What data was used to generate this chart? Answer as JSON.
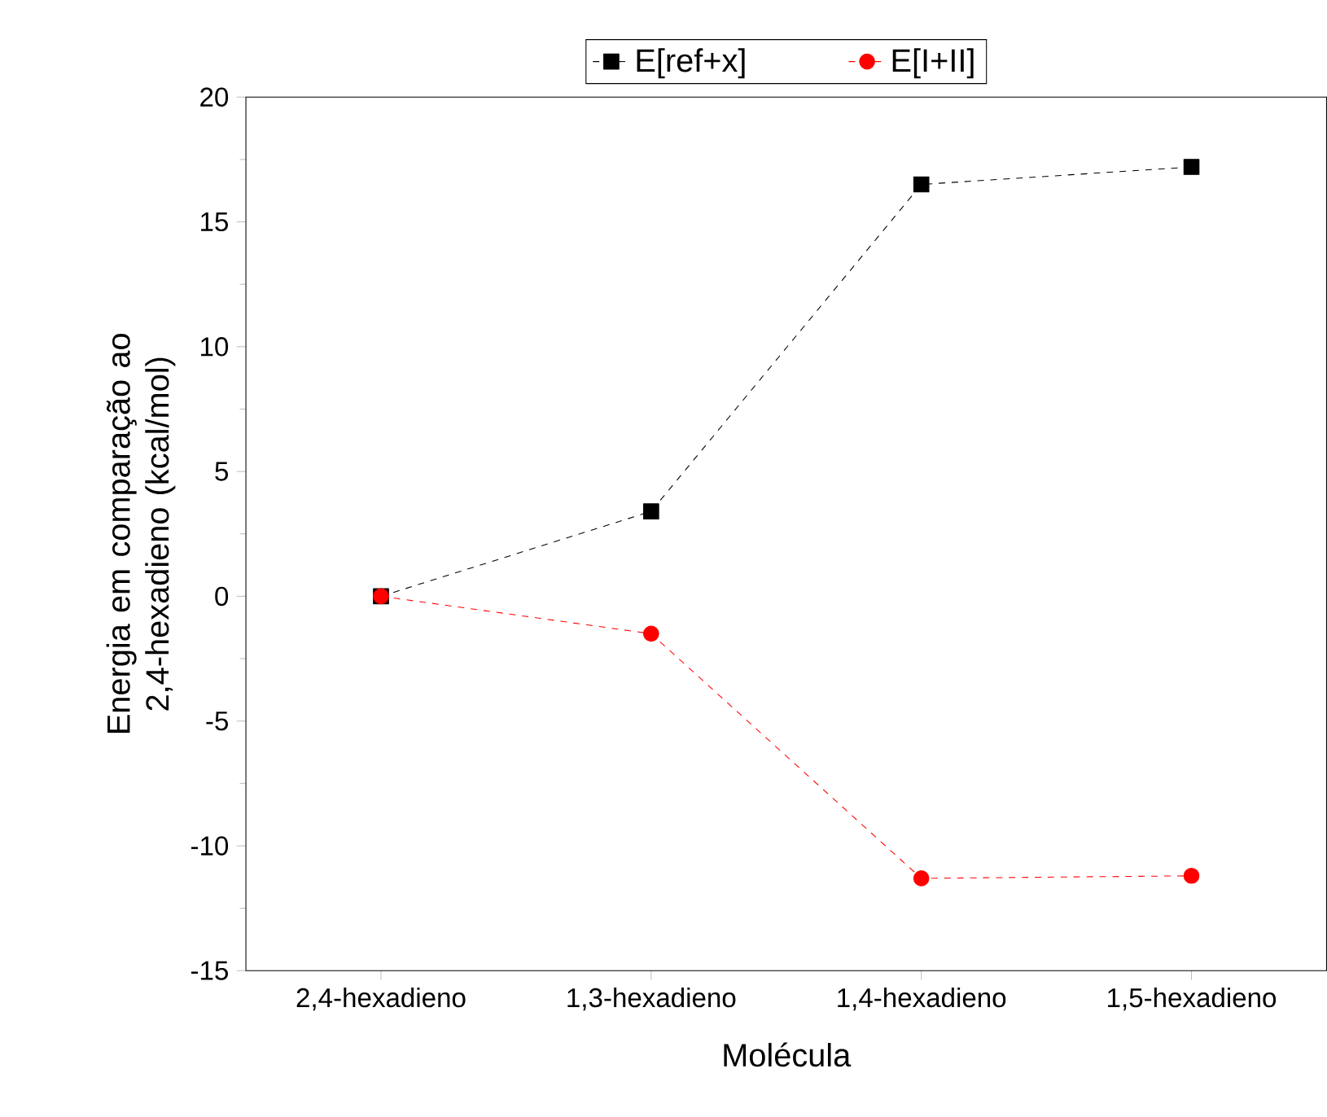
{
  "chart_data": {
    "type": "line",
    "xlabel": "Molécula",
    "ylabel": "Energia em comparação ao 2,4-hexadieno (kcal/mol)",
    "categories": [
      "2,4-hexadieno",
      "1,3-hexadieno",
      "1,4-hexadieno",
      "1,5-hexadieno"
    ],
    "series": [
      {
        "name": "E[ref+x]",
        "color": "#000000",
        "marker": "square",
        "values": [
          0,
          3.4,
          16.5,
          17.2
        ]
      },
      {
        "name": "E[I+II]",
        "color": "#ff0000",
        "marker": "circle",
        "values": [
          0,
          -1.5,
          -11.3,
          -11.2
        ]
      }
    ],
    "ylim": [
      -15,
      20
    ],
    "yticks": [
      -15,
      -10,
      -5,
      0,
      5,
      10,
      15,
      20
    ],
    "grid": false,
    "legend": "top",
    "line_style": "dashed"
  }
}
